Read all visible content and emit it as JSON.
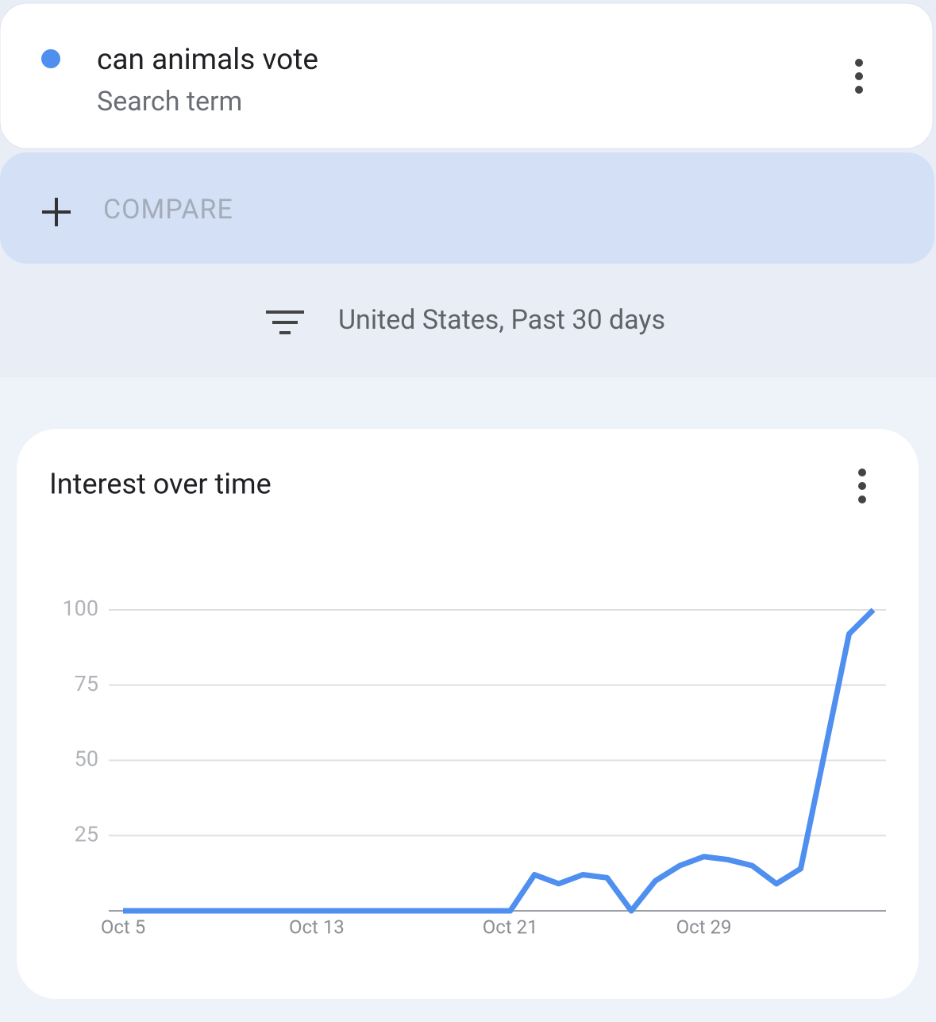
{
  "search_card": {
    "term": "can animals vote",
    "subtitle": "Search term"
  },
  "compare": {
    "label": "COMPARE"
  },
  "filter": {
    "label": "United States, Past 30 days"
  },
  "chart_data": {
    "type": "line",
    "title": "Interest over time",
    "categories": [
      "Oct 5",
      null,
      null,
      null,
      null,
      null,
      null,
      null,
      "Oct 13",
      null,
      null,
      null,
      null,
      null,
      null,
      null,
      "Oct 21",
      null,
      null,
      null,
      null,
      null,
      null,
      null,
      "Oct 29",
      null,
      null,
      null,
      null,
      null,
      null,
      null
    ],
    "series": [
      {
        "name": "can animals vote",
        "color": "#4f8ff0",
        "values": [
          0,
          0,
          0,
          0,
          0,
          0,
          0,
          0,
          0,
          0,
          0,
          0,
          0,
          0,
          0,
          0,
          0,
          12,
          9,
          12,
          11,
          0,
          10,
          15,
          18,
          17,
          15,
          9,
          14,
          53,
          92,
          100
        ]
      }
    ],
    "ylim": [
      0,
      100
    ],
    "yticks": [
      25,
      50,
      75,
      100
    ],
    "grid": true
  }
}
